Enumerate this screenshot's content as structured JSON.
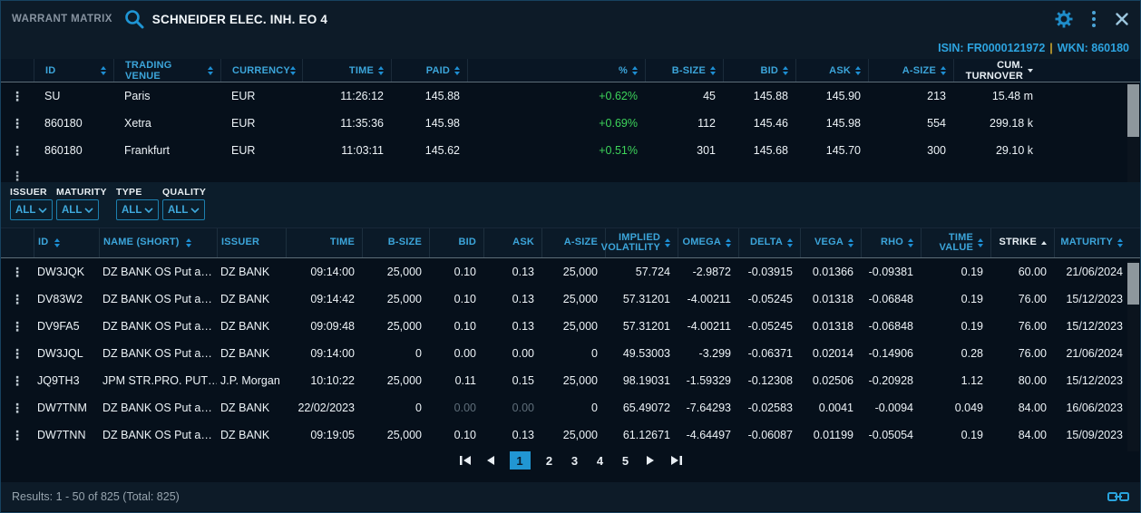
{
  "window": {
    "title": "WARRANT MATRIX",
    "instrument": "SCHNEIDER ELEC. INH. EO 4",
    "isin_label": "ISIN:",
    "isin_value": "FR0000121972",
    "id_separator": "|",
    "wkn_label": "WKN:",
    "wkn_value": "860180"
  },
  "ui": {
    "row_menu_glyph": "⋮"
  },
  "quotes_table": {
    "columns": [
      {
        "key": "id",
        "label": "ID",
        "sort": "both"
      },
      {
        "key": "venue",
        "label": "TRADING VENUE",
        "sort": "both"
      },
      {
        "key": "currency",
        "label": "CURRENCY",
        "sort": "both"
      },
      {
        "key": "time",
        "label": "TIME",
        "sort": "both"
      },
      {
        "key": "paid",
        "label": "PAID",
        "sort": "both"
      },
      {
        "key": "pct",
        "label": "%",
        "sort": "both"
      },
      {
        "key": "bsize",
        "label": "B-SIZE",
        "sort": "both"
      },
      {
        "key": "bid",
        "label": "BID",
        "sort": "both"
      },
      {
        "key": "ask",
        "label": "ASK",
        "sort": "both"
      },
      {
        "key": "asize",
        "label": "A-SIZE",
        "sort": "both"
      },
      {
        "key": "turnover",
        "label": "CUM. TURNOVER",
        "sort": "desc",
        "active": true
      }
    ],
    "rows": [
      {
        "id": "SU",
        "venue": "Paris",
        "currency": "EUR",
        "time": "11:26:12",
        "paid": "145.88",
        "pct": "+0.62%",
        "bsize": "45",
        "bid": "145.88",
        "ask": "145.90",
        "asize": "213",
        "turnover": "15.48 m"
      },
      {
        "id": "860180",
        "venue": "Xetra",
        "currency": "EUR",
        "time": "11:35:36",
        "paid": "145.98",
        "pct": "+0.69%",
        "bsize": "112",
        "bid": "145.46",
        "ask": "145.98",
        "asize": "554",
        "turnover": "299.18 k"
      },
      {
        "id": "860180",
        "venue": "Frankfurt",
        "currency": "EUR",
        "time": "11:03:11",
        "paid": "145.62",
        "pct": "+0.51%",
        "bsize": "301",
        "bid": "145.68",
        "ask": "145.70",
        "asize": "300",
        "turnover": "29.10 k"
      }
    ]
  },
  "filters": [
    {
      "label": "ISSUER",
      "value": "ALL"
    },
    {
      "label": "MATURITY",
      "value": "ALL"
    },
    {
      "label": "TYPE",
      "value": "ALL"
    },
    {
      "label": "QUALITY",
      "value": "ALL"
    }
  ],
  "warrants_table": {
    "columns": [
      {
        "key": "id",
        "label": "ID",
        "sort": "both"
      },
      {
        "key": "name",
        "label": "NAME (SHORT)",
        "sort": "both"
      },
      {
        "key": "issuer",
        "label": "ISSUER",
        "sort": "none"
      },
      {
        "key": "time",
        "label": "TIME",
        "sort": "none"
      },
      {
        "key": "bsize",
        "label": "B-SIZE",
        "sort": "none"
      },
      {
        "key": "bid",
        "label": "BID",
        "sort": "none"
      },
      {
        "key": "ask",
        "label": "ASK",
        "sort": "none"
      },
      {
        "key": "asize",
        "label": "A-SIZE",
        "sort": "none"
      },
      {
        "key": "iv",
        "label": "IMPLIED VOLATILITY",
        "sort": "both"
      },
      {
        "key": "omega",
        "label": "OMEGA",
        "sort": "both"
      },
      {
        "key": "delta",
        "label": "DELTA",
        "sort": "both"
      },
      {
        "key": "vega",
        "label": "VEGA",
        "sort": "both"
      },
      {
        "key": "rho",
        "label": "RHO",
        "sort": "both"
      },
      {
        "key": "tv",
        "label": "TIME VALUE",
        "sort": "both"
      },
      {
        "key": "strike",
        "label": "STRIKE",
        "sort": "asc",
        "active": true
      },
      {
        "key": "maturity",
        "label": "MATURITY",
        "sort": "both"
      }
    ],
    "rows": [
      {
        "id": "DW3JQK",
        "name": "DZ BANK OS Put a…",
        "issuer": "DZ BANK",
        "time": "09:14:00",
        "bsize": "25,000",
        "bid": "0.10",
        "ask": "0.13",
        "asize": "25,000",
        "iv": "57.724",
        "omega": "-2.9872",
        "delta": "-0.03915",
        "vega": "0.01366",
        "rho": "-0.09381",
        "tv": "0.19",
        "strike": "60.00",
        "maturity": "21/06/2024"
      },
      {
        "id": "DV83W2",
        "name": "DZ BANK OS Put a…",
        "issuer": "DZ BANK",
        "time": "09:14:42",
        "bsize": "25,000",
        "bid": "0.10",
        "ask": "0.13",
        "asize": "25,000",
        "iv": "57.31201",
        "omega": "-4.00211",
        "delta": "-0.05245",
        "vega": "0.01318",
        "rho": "-0.06848",
        "tv": "0.19",
        "strike": "76.00",
        "maturity": "15/12/2023"
      },
      {
        "id": "DV9FA5",
        "name": "DZ BANK OS Put a…",
        "issuer": "DZ BANK",
        "time": "09:09:48",
        "bsize": "25,000",
        "bid": "0.10",
        "ask": "0.13",
        "asize": "25,000",
        "iv": "57.31201",
        "omega": "-4.00211",
        "delta": "-0.05245",
        "vega": "0.01318",
        "rho": "-0.06848",
        "tv": "0.19",
        "strike": "76.00",
        "maturity": "15/12/2023"
      },
      {
        "id": "DW3JQL",
        "name": "DZ BANK OS Put a…",
        "issuer": "DZ BANK",
        "time": "09:14:00",
        "bsize": "0",
        "bid": "0.00",
        "ask": "0.00",
        "asize": "0",
        "iv": "49.53003",
        "omega": "-3.299",
        "delta": "-0.06371",
        "vega": "0.02014",
        "rho": "-0.14906",
        "tv": "0.28",
        "strike": "76.00",
        "maturity": "21/06/2024"
      },
      {
        "id": "JQ9TH3",
        "name": "JPM STR.PRO. PUT…",
        "issuer": "J.P. Morgan",
        "time": "10:10:22",
        "bsize": "25,000",
        "bid": "0.11",
        "ask": "0.15",
        "asize": "25,000",
        "iv": "98.19031",
        "omega": "-1.59329",
        "delta": "-0.12308",
        "vega": "0.02506",
        "rho": "-0.20928",
        "tv": "1.12",
        "strike": "80.00",
        "maturity": "15/12/2023"
      },
      {
        "id": "DW7TNM",
        "name": "DZ BANK OS Put a…",
        "issuer": "DZ BANK",
        "time": "22/02/2023",
        "bsize": "0",
        "bid": "0.00",
        "ask": "0.00",
        "asize": "0",
        "iv": "65.49072",
        "omega": "-7.64293",
        "delta": "-0.02583",
        "vega": "0.0041",
        "rho": "-0.0094",
        "tv": "0.049",
        "strike": "84.00",
        "maturity": "16/06/2023",
        "dim": [
          "bid",
          "ask"
        ]
      },
      {
        "id": "DW7TNN",
        "name": "DZ BANK OS Put a…",
        "issuer": "DZ BANK",
        "time": "09:19:05",
        "bsize": "25,000",
        "bid": "0.10",
        "ask": "0.13",
        "asize": "25,000",
        "iv": "61.12671",
        "omega": "-4.64497",
        "delta": "-0.06087",
        "vega": "0.01199",
        "rho": "-0.05054",
        "tv": "0.19",
        "strike": "84.00",
        "maturity": "15/09/2023"
      }
    ]
  },
  "pagination": {
    "pages": [
      "1",
      "2",
      "3",
      "4",
      "5"
    ],
    "active_page": "1"
  },
  "status": {
    "results_text": "Results: 1 - 50 of 825 (Total: 825)"
  },
  "colors": {
    "accent_blue": "#1f95d4",
    "header_blue": "#3ca5da",
    "positive_green": "#3dd45a",
    "isin_blue": "#2da4e0",
    "separator_yellow": "#c9a42d"
  }
}
